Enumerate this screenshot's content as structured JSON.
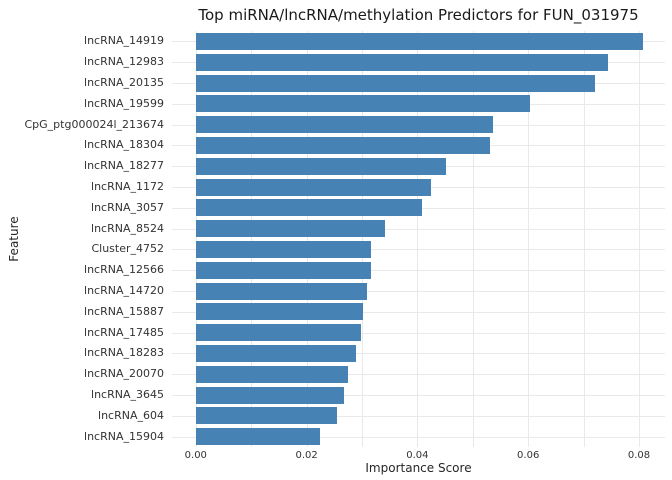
{
  "chart_data": {
    "type": "bar",
    "orientation": "horizontal",
    "title": "Top miRNA/lncRNA/methylation Predictors for FUN_031975",
    "xlabel": "Importance Score",
    "ylabel": "Feature",
    "categories": [
      "lncRNA_14919",
      "lncRNA_12983",
      "lncRNA_20135",
      "lncRNA_19599",
      "CpG_ptg000024l_213674",
      "lncRNA_18304",
      "lncRNA_18277",
      "lncRNA_1172",
      "lncRNA_3057",
      "lncRNA_8524",
      "Cluster_4752",
      "lncRNA_12566",
      "lncRNA_14720",
      "lncRNA_15887",
      "lncRNA_17485",
      "lncRNA_18283",
      "lncRNA_20070",
      "lncRNA_3645",
      "lncRNA_604",
      "lncRNA_15904"
    ],
    "values": [
      0.0807,
      0.0744,
      0.0721,
      0.0604,
      0.0536,
      0.0531,
      0.0451,
      0.0424,
      0.0409,
      0.0342,
      0.0317,
      0.0317,
      0.0309,
      0.0302,
      0.0299,
      0.0289,
      0.0275,
      0.0268,
      0.0255,
      0.0224
    ],
    "xlim": [
      -0.0043,
      0.0847
    ],
    "xticks": [
      {
        "value": 0.0,
        "label": "0.00"
      },
      {
        "value": 0.02,
        "label": "0.02"
      },
      {
        "value": 0.04,
        "label": "0.04"
      },
      {
        "value": 0.06,
        "label": "0.06"
      },
      {
        "value": 0.08,
        "label": "0.08"
      }
    ],
    "gridlines_x": [
      0.0,
      0.01,
      0.02,
      0.03,
      0.04,
      0.05,
      0.06,
      0.07,
      0.08
    ],
    "grid": "on",
    "legend": "none",
    "colors": {
      "bar": "#4682b4",
      "grid": "#e9e9e9",
      "text": "#262626",
      "background": "#ffffff"
    }
  }
}
